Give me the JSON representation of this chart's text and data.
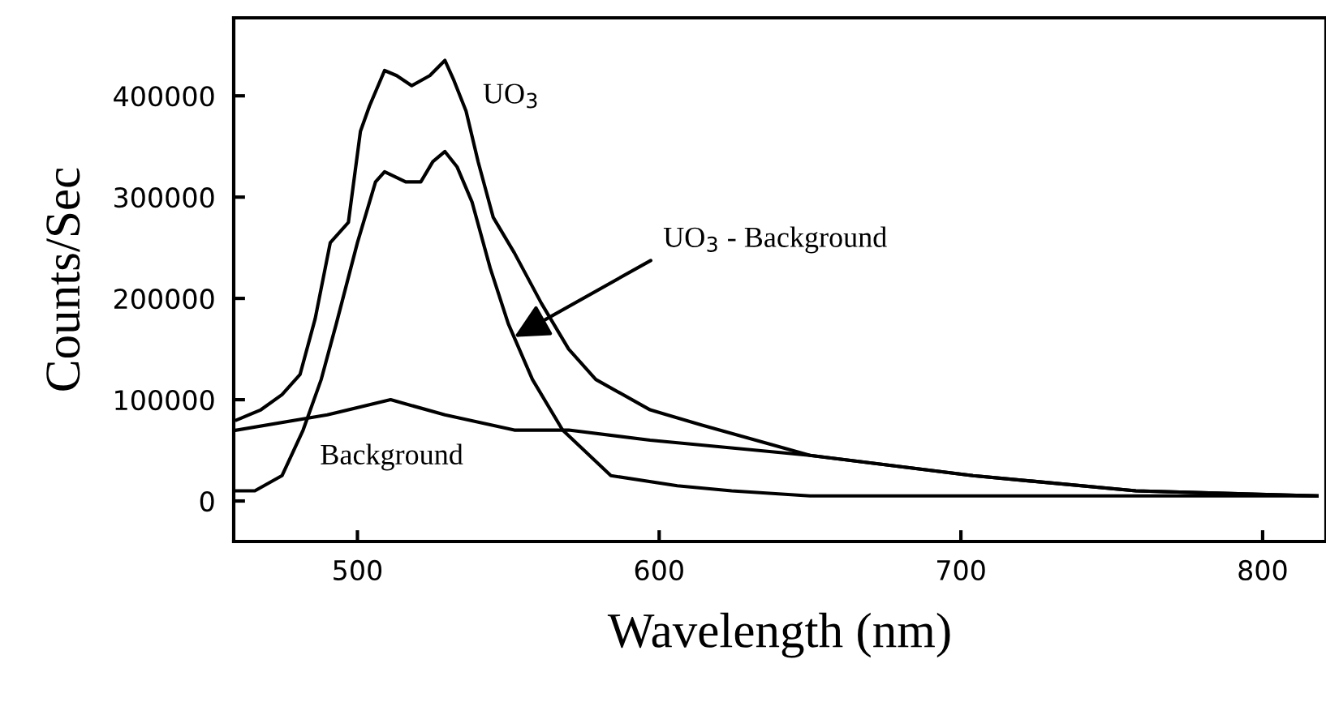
{
  "chart_data": {
    "type": "line",
    "xlabel": "Wavelength (nm)",
    "ylabel": "Counts/Sec",
    "xlim": [
      459,
      821
    ],
    "xticks": [
      500,
      600,
      700,
      800
    ],
    "ylim": [
      -40000,
      477000
    ],
    "yticks": [
      0,
      100000,
      200000,
      300000,
      400000
    ],
    "grid": false,
    "legend": false,
    "marker": "none",
    "line_style": "solid",
    "series": [
      {
        "color": "#000000",
        "x": [
          460,
          468,
          475,
          481,
          486,
          491,
          497,
          501,
          504,
          509,
          513,
          518,
          524,
          529,
          532,
          536,
          540,
          545,
          552,
          561,
          570,
          579,
          597,
          614,
          650,
          704,
          758,
          818
        ],
        "values": [
          80000,
          90000,
          105000,
          125000,
          180000,
          255000,
          275000,
          365000,
          390000,
          425000,
          420000,
          410000,
          420000,
          435000,
          415000,
          385000,
          335000,
          280000,
          245000,
          195000,
          150000,
          120000,
          90000,
          75000,
          45000,
          25000,
          10000,
          5000
        ]
      },
      {
        "color": "#000000",
        "x": [
          460,
          490,
          511,
          529,
          552,
          570,
          597,
          650,
          704,
          758,
          818
        ],
        "values": [
          70000,
          85000,
          100000,
          85000,
          70000,
          70000,
          60000,
          45000,
          25000,
          10000,
          5000
        ]
      },
      {
        "color": "#000000",
        "x": [
          460,
          466,
          475,
          482,
          488,
          493,
          500,
          506,
          509,
          516,
          521,
          525,
          529,
          533,
          538,
          544,
          550,
          558,
          568,
          584,
          606,
          624,
          650,
          704,
          818
        ],
        "values": [
          10000,
          10000,
          25000,
          70000,
          120000,
          175000,
          255000,
          315000,
          325000,
          315000,
          315000,
          335000,
          345000,
          330000,
          295000,
          230000,
          175000,
          120000,
          70000,
          25000,
          15000,
          10000,
          5000,
          5000,
          5000
        ]
      }
    ],
    "annotations": [
      "UO$_{3}$",
      {
        "text": "UO$_{3}$ - Background",
        "x": 552,
        "y": 162000
      },
      "Background"
    ]
  }
}
